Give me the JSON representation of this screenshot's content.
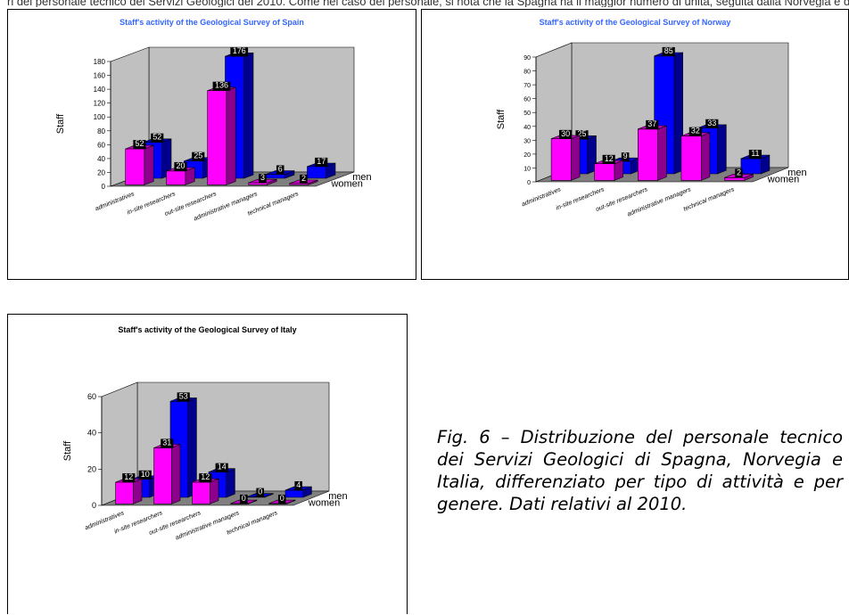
{
  "header_fragment": "ri del personale tecnico dei Servizi Geologici del 2010. Come nel caso del personale, si nota che la Spagna ha il maggior numero di unità, seguita dalla Norvegia e dalla I",
  "caption": "Fig. 6 – Distribuzione del personale tecnico dei Servizi Geologici di Spagna, Norvegia e Italia, differenziato per tipo di attività e per genere. Dati relativi al 2010.",
  "colors": {
    "women": "#ff00ff",
    "men": "#0000ff",
    "wall": "#c0c0c0",
    "floor": "#808080",
    "title_spain_norway": "#3366ff",
    "title_italy": "#000000"
  },
  "chart_data": [
    {
      "type": "bar",
      "title": "Staff's activity of the Geological Survey of Spain",
      "ylabel": "Staff",
      "categories": [
        "administratives",
        "in-site researchers",
        "out-site researchers",
        "administrative managers",
        "technical managers"
      ],
      "series": [
        {
          "name": "women",
          "values": [
            52,
            20,
            136,
            3,
            2
          ]
        },
        {
          "name": "men",
          "values": [
            52,
            25,
            176,
            6,
            17
          ]
        }
      ],
      "ylim": [
        0,
        180
      ],
      "yticks": [
        "0",
        "20",
        "40",
        "60",
        "80",
        "100",
        "120",
        "140",
        "160",
        "180"
      ],
      "grid": false
    },
    {
      "type": "bar",
      "title": "Staff's activity of the Geological Survey of Norway",
      "ylabel": "Staff",
      "categories": [
        "administratives",
        "in-site researchers",
        "out-site researchers",
        "administrative managers",
        "technical managers"
      ],
      "series": [
        {
          "name": "women",
          "values": [
            30,
            12,
            37,
            32,
            2
          ]
        },
        {
          "name": "men",
          "values": [
            25,
            9,
            85,
            33,
            11
          ]
        }
      ],
      "ylim": [
        0,
        90
      ],
      "yticks": [
        "0",
        "10",
        "20",
        "30",
        "40",
        "50",
        "60",
        "70",
        "80",
        "90"
      ],
      "grid": false
    },
    {
      "type": "bar",
      "title": "Staff's activity of the Geological Survey of Italy",
      "ylabel": "Staff",
      "categories": [
        "administratives",
        "in-site researchers",
        "out-site researchers",
        "administrative managers",
        "technical managers"
      ],
      "series": [
        {
          "name": "women",
          "values": [
            12,
            31,
            12,
            0,
            0
          ]
        },
        {
          "name": "men",
          "values": [
            10,
            53,
            14,
            0,
            4
          ]
        }
      ],
      "ylim": [
        0,
        60
      ],
      "yticks": [
        "0",
        "20",
        "40",
        "60"
      ],
      "grid": false
    }
  ]
}
